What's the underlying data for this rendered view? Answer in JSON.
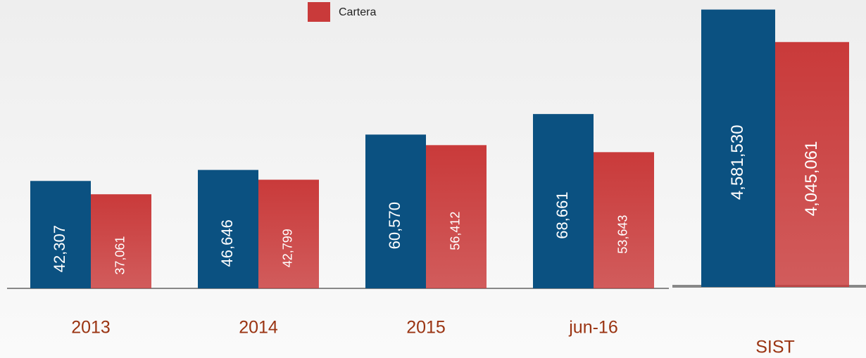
{
  "chart_data": [
    {
      "type": "bar",
      "categories": [
        "2013",
        "2014",
        "2015",
        "jun-16"
      ],
      "series": [
        {
          "color": "#0b5181",
          "values": [
            42307,
            46646,
            60570,
            68661
          ],
          "value_labels": [
            "42,307",
            "46,646",
            "60,570",
            "68,661"
          ]
        },
        {
          "name": "Cartera",
          "color": "#c93a3a",
          "values": [
            37061,
            42799,
            56412,
            53643
          ],
          "value_labels": [
            "37,061",
            "42,799",
            "56,412",
            "53,643"
          ]
        }
      ],
      "ylim": [
        0,
        100000
      ]
    },
    {
      "type": "bar",
      "categories": [
        "SIST"
      ],
      "series": [
        {
          "color": "#0b5181",
          "values": [
            4581530
          ],
          "value_labels": [
            "4,581,530"
          ]
        },
        {
          "name": "Cartera",
          "color": "#c93a3a",
          "values": [
            4045061
          ],
          "value_labels": [
            "4,045,061"
          ]
        }
      ],
      "ylim": [
        0,
        4600000
      ]
    }
  ]
}
